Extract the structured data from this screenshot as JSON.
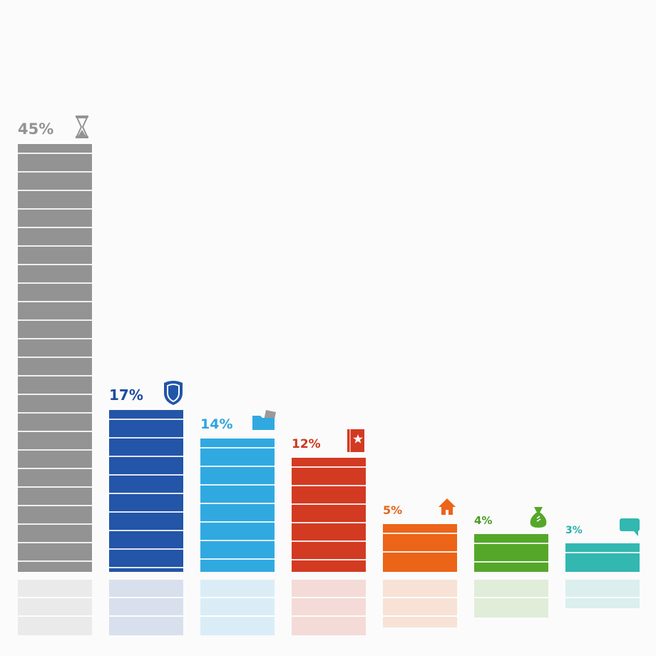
{
  "chart_data": {
    "type": "bar",
    "title": "",
    "xlabel": "",
    "ylabel": "",
    "categories": [
      "",
      "",
      "",
      "",
      "",
      "",
      ""
    ],
    "values": [
      45,
      17,
      14,
      12,
      5,
      4,
      3
    ],
    "labels": [
      "45%",
      "17%",
      "14%",
      "12%",
      "5%",
      "4%",
      "3%"
    ],
    "icons": [
      "hourglass-icon",
      "shield-icon",
      "folder-icon",
      "book-icon",
      "house-icon",
      "money-bag-icon",
      "speech-bubble-icon"
    ],
    "colors": [
      "#939393",
      "#2355a8",
      "#30a9e1",
      "#d33a22",
      "#ec6418",
      "#55a72a",
      "#32b7b1"
    ],
    "label_colors": [
      "#939393",
      "#1d4d9e",
      "#2ea4de",
      "#cc3720",
      "#e5641a",
      "#4a9b25",
      "#2bb0ab"
    ],
    "ylim": [
      0,
      45
    ],
    "grid": false,
    "legend": "none",
    "reflection": true
  }
}
